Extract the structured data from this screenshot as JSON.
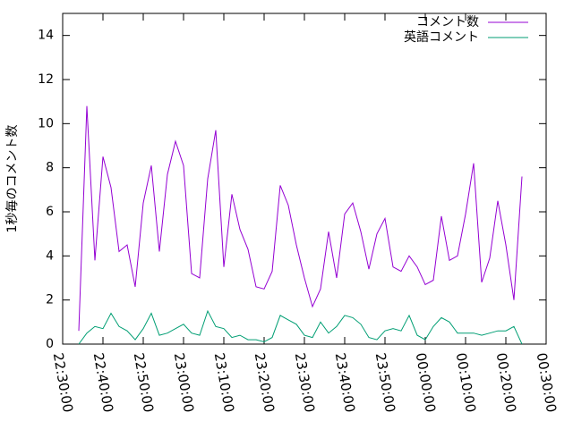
{
  "chart_data": {
    "type": "line",
    "ylabel": "1秒毎のコメント数",
    "x": [
      "22:34:00",
      "22:36:00",
      "22:38:00",
      "22:40:00",
      "22:42:00",
      "22:44:00",
      "22:46:00",
      "22:48:00",
      "22:50:00",
      "22:52:00",
      "22:54:00",
      "22:56:00",
      "22:58:00",
      "23:00:00",
      "23:02:00",
      "23:04:00",
      "23:06:00",
      "23:08:00",
      "23:10:00",
      "23:12:00",
      "23:14:00",
      "23:16:00",
      "23:18:00",
      "23:20:00",
      "23:22:00",
      "23:24:00",
      "23:26:00",
      "23:28:00",
      "23:30:00",
      "23:32:00",
      "23:34:00",
      "23:36:00",
      "23:38:00",
      "23:40:00",
      "23:42:00",
      "23:44:00",
      "23:46:00",
      "23:48:00",
      "23:50:00",
      "23:52:00",
      "23:54:00",
      "23:56:00",
      "23:58:00",
      "00:00:00",
      "00:02:00",
      "00:04:00",
      "00:06:00",
      "00:08:00",
      "00:10:00",
      "00:12:00",
      "00:14:00",
      "00:16:00",
      "00:18:00",
      "00:20:00",
      "00:22:00",
      "00:24:00"
    ],
    "series": [
      {
        "name": "コメント数",
        "color": "#9400d3",
        "values": [
          0.6,
          10.8,
          3.8,
          8.5,
          7.1,
          4.2,
          4.5,
          2.6,
          6.4,
          8.1,
          4.2,
          7.7,
          9.2,
          8.1,
          3.2,
          3.0,
          7.5,
          9.7,
          3.5,
          6.8,
          5.2,
          4.3,
          2.6,
          2.5,
          3.3,
          7.2,
          6.3,
          4.5,
          3.0,
          1.7,
          2.5,
          5.1,
          3.0,
          5.9,
          6.4,
          5.1,
          3.4,
          5.0,
          5.7,
          3.5,
          3.3,
          4.0,
          3.5,
          2.7,
          2.9,
          5.8,
          3.8,
          4.0,
          5.9,
          8.2,
          2.8,
          3.9,
          6.5,
          4.5,
          2.0,
          7.6
        ]
      },
      {
        "name": "英語コメント",
        "color": "#009e73",
        "values": [
          0.0,
          0.5,
          0.8,
          0.7,
          1.4,
          0.8,
          0.6,
          0.2,
          0.7,
          1.4,
          0.4,
          0.5,
          0.7,
          0.9,
          0.5,
          0.4,
          1.5,
          0.8,
          0.7,
          0.3,
          0.4,
          0.2,
          0.2,
          0.1,
          0.3,
          1.3,
          1.1,
          0.9,
          0.4,
          0.3,
          1.0,
          0.5,
          0.8,
          1.3,
          1.2,
          0.9,
          0.3,
          0.2,
          0.6,
          0.7,
          0.6,
          1.3,
          0.4,
          0.2,
          0.8,
          1.2,
          1.0,
          0.5,
          0.5,
          0.5,
          0.4,
          0.5,
          0.6,
          0.6,
          0.8,
          0.0
        ]
      }
    ],
    "xlim": [
      "22:30:00",
      "00:30:00"
    ],
    "xticks": [
      "22:30:00",
      "22:40:00",
      "22:50:00",
      "23:00:00",
      "23:10:00",
      "23:20:00",
      "23:30:00",
      "23:40:00",
      "23:50:00",
      "00:00:00",
      "00:10:00",
      "00:20:00",
      "00:30:00"
    ],
    "ylim": [
      0,
      15
    ],
    "yticks": [
      0,
      2,
      4,
      6,
      8,
      10,
      12,
      14
    ],
    "legend": "top-right"
  }
}
